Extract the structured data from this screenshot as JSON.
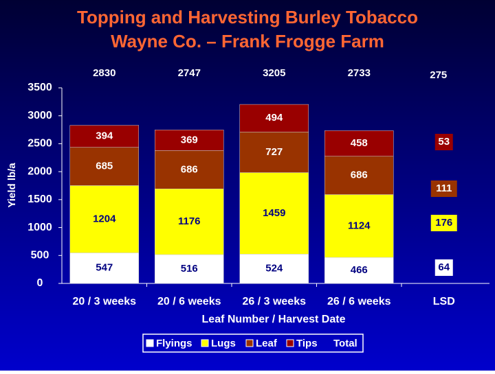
{
  "chart_data": {
    "type": "stacked_bar",
    "title": [
      "Topping and Harvesting Burley Tobacco",
      "Wayne Co. – Frank Frogge Farm"
    ],
    "ylabel": "Yield lb/a",
    "xlabel": "Leaf Number / Harvest Date",
    "categories": [
      "20 / 3 weeks",
      "20 / 6 weeks",
      "26 / 3 weeks",
      "26 / 6 weeks"
    ],
    "series": [
      {
        "name": "Flyings",
        "color": "#ffffff",
        "values": [
          547,
          516,
          524,
          466
        ]
      },
      {
        "name": "Lugs",
        "color": "#ffff00",
        "values": [
          1204,
          1176,
          1459,
          1124
        ]
      },
      {
        "name": "Leaf",
        "color": "#993300",
        "values": [
          685,
          686,
          727,
          686
        ]
      },
      {
        "name": "Tips",
        "color": "#990000",
        "values": [
          394,
          369,
          494,
          458
        ]
      }
    ],
    "totals": [
      2830,
      2747,
      3205,
      2733
    ],
    "total_label": "Total",
    "lsd": {
      "label": "LSD",
      "values": [
        64,
        176,
        111,
        53
      ],
      "total": 275
    },
    "ylim": [
      0,
      3500
    ],
    "yticks": [
      0,
      500,
      1000,
      1500,
      2000,
      2500,
      3000,
      3500
    ]
  }
}
